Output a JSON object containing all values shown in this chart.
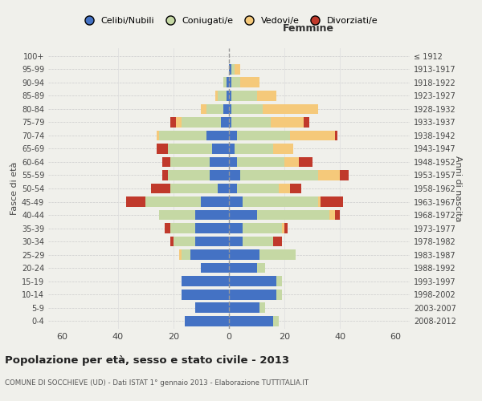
{
  "age_groups": [
    "0-4",
    "5-9",
    "10-14",
    "15-19",
    "20-24",
    "25-29",
    "30-34",
    "35-39",
    "40-44",
    "45-49",
    "50-54",
    "55-59",
    "60-64",
    "65-69",
    "70-74",
    "75-79",
    "80-84",
    "85-89",
    "90-94",
    "95-99",
    "100+"
  ],
  "birth_years": [
    "2008-2012",
    "2003-2007",
    "1998-2002",
    "1993-1997",
    "1988-1992",
    "1983-1987",
    "1978-1982",
    "1973-1977",
    "1968-1972",
    "1963-1967",
    "1958-1962",
    "1953-1957",
    "1948-1952",
    "1943-1947",
    "1938-1942",
    "1933-1937",
    "1928-1932",
    "1923-1927",
    "1918-1922",
    "1913-1917",
    "≤ 1912"
  ],
  "male": {
    "celibe": [
      16,
      12,
      17,
      17,
      10,
      14,
      12,
      12,
      12,
      10,
      4,
      7,
      7,
      6,
      8,
      3,
      2,
      1,
      1,
      0,
      0
    ],
    "coniugato": [
      0,
      0,
      0,
      0,
      0,
      3,
      8,
      9,
      13,
      20,
      17,
      15,
      14,
      16,
      17,
      14,
      6,
      3,
      1,
      0,
      0
    ],
    "vedovo": [
      0,
      0,
      0,
      0,
      0,
      1,
      0,
      0,
      0,
      0,
      0,
      0,
      0,
      0,
      1,
      2,
      2,
      1,
      0,
      0,
      0
    ],
    "divorziato": [
      0,
      0,
      0,
      0,
      0,
      0,
      1,
      2,
      0,
      7,
      7,
      2,
      3,
      4,
      0,
      2,
      0,
      0,
      0,
      0,
      0
    ]
  },
  "female": {
    "nubile": [
      16,
      11,
      17,
      17,
      10,
      11,
      5,
      5,
      10,
      5,
      3,
      4,
      3,
      2,
      3,
      1,
      1,
      1,
      1,
      1,
      0
    ],
    "coniugata": [
      2,
      2,
      2,
      2,
      3,
      13,
      11,
      14,
      26,
      27,
      15,
      28,
      17,
      14,
      19,
      14,
      11,
      9,
      3,
      1,
      0
    ],
    "vedova": [
      0,
      0,
      0,
      0,
      0,
      0,
      0,
      1,
      2,
      1,
      4,
      8,
      5,
      7,
      16,
      12,
      20,
      7,
      7,
      2,
      0
    ],
    "divorziata": [
      0,
      0,
      0,
      0,
      0,
      0,
      3,
      1,
      2,
      8,
      4,
      3,
      5,
      0,
      1,
      2,
      0,
      0,
      0,
      0,
      0
    ]
  },
  "colors": {
    "celibe_nubile": "#4472C4",
    "coniugato_coniugata": "#c5d8a4",
    "vedovo_vedova": "#f5c97a",
    "divorziato_divorziata": "#c0392b"
  },
  "title": "Popolazione per età, sesso e stato civile - 2013",
  "subtitle": "COMUNE DI SOCCHIEVE (UD) - Dati ISTAT 1° gennaio 2013 - Elaborazione TUTTITALIA.IT",
  "xlabel_right": "Femmine",
  "ylabel_left": "Fasce di età",
  "ylabel_right": "Anni di nascita",
  "xlim": 65,
  "legend_labels": [
    "Celibi/Nubili",
    "Coniugati/e",
    "Vedovi/e",
    "Divorziati/e"
  ],
  "background_color": "#f0f0eb"
}
